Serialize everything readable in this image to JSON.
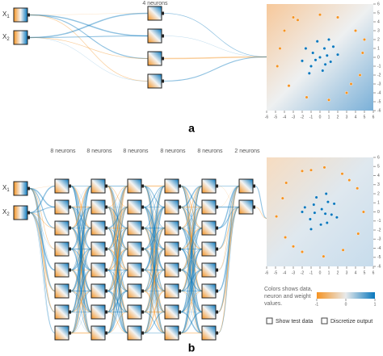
{
  "panel_a": {
    "label": "a",
    "inputs": [
      {
        "name": "X",
        "sub": "1"
      },
      {
        "name": "X",
        "sub": "2"
      }
    ],
    "layers": [
      "4 neurons"
    ],
    "plot": {
      "xlim": [
        -6,
        6
      ],
      "ylim": [
        -6,
        6
      ],
      "xticks": [
        -6,
        -5,
        -4,
        -3,
        -2,
        -1,
        0,
        1,
        2,
        3,
        4,
        5,
        6
      ],
      "yticks": [
        -6,
        -5,
        -4,
        -3,
        -2,
        -1,
        0,
        1,
        2,
        3,
        4,
        5,
        6
      ],
      "series": [
        {
          "color": "#f59322",
          "points": [
            [
              -4.5,
              1
            ],
            [
              -4,
              3
            ],
            [
              -2.5,
              4.2
            ],
            [
              0,
              4.8
            ],
            [
              2,
              4.5
            ],
            [
              4,
              3
            ],
            [
              4.8,
              0.5
            ],
            [
              4.5,
              -2
            ],
            [
              3,
              -4
            ],
            [
              1,
              -4.8
            ],
            [
              -1.5,
              -4.5
            ],
            [
              -3.5,
              -3.2
            ],
            [
              -4.8,
              -1
            ],
            [
              -3,
              4.5
            ],
            [
              3.5,
              -3
            ],
            [
              5,
              2
            ]
          ]
        },
        {
          "color": "#0877bd",
          "points": [
            [
              0,
              0
            ],
            [
              0.5,
              1
            ],
            [
              -0.8,
              0.5
            ],
            [
              1.2,
              -0.5
            ],
            [
              -1,
              -1
            ],
            [
              0.3,
              -1.5
            ],
            [
              1.5,
              1.2
            ],
            [
              -1.6,
              1
            ],
            [
              0.8,
              0.2
            ],
            [
              -0.3,
              1.8
            ],
            [
              2,
              0.3
            ],
            [
              -2,
              -0.4
            ],
            [
              0.6,
              -0.8
            ],
            [
              -0.5,
              -0.3
            ],
            [
              1,
              2
            ],
            [
              -1.2,
              -1.8
            ]
          ]
        }
      ]
    }
  },
  "panel_b": {
    "label": "b",
    "inputs": [
      {
        "name": "X",
        "sub": "1"
      },
      {
        "name": "X",
        "sub": "2"
      }
    ],
    "layers": [
      "8 neurons",
      "8 neurons",
      "8 neurons",
      "8 neurons",
      "8 neurons",
      "2 neurons"
    ],
    "plot": {
      "xlim": [
        -6,
        6
      ],
      "ylim": [
        -6,
        6
      ],
      "xticks": [
        -6,
        -5,
        -4,
        -3,
        -2,
        -1,
        0,
        1,
        2,
        3,
        4,
        5,
        6
      ],
      "yticks": [
        -6,
        -5,
        -4,
        -3,
        -2,
        -1,
        0,
        1,
        2,
        3,
        4,
        5,
        6
      ],
      "series": [
        {
          "color": "#f59322",
          "points": [
            [
              -4.2,
              1.5
            ],
            [
              -3.8,
              3.2
            ],
            [
              -2,
              4.5
            ],
            [
              0.5,
              4.9
            ],
            [
              2.5,
              4.2
            ],
            [
              4.2,
              2.6
            ],
            [
              4.9,
              0
            ],
            [
              4.3,
              -2.4
            ],
            [
              2.6,
              -4.2
            ],
            [
              0.4,
              -4.9
            ],
            [
              -2,
              -4.4
            ],
            [
              -3.9,
              -2.8
            ],
            [
              -4.9,
              -0.5
            ],
            [
              -1,
              4.6
            ],
            [
              3.3,
              3.5
            ],
            [
              -3,
              -3.8
            ]
          ]
        },
        {
          "color": "#0877bd",
          "points": [
            [
              0.2,
              0.3
            ],
            [
              0.9,
              1.1
            ],
            [
              -0.7,
              0.8
            ],
            [
              1.3,
              -0.3
            ],
            [
              -1.1,
              -0.8
            ],
            [
              0.1,
              -1.4
            ],
            [
              1.6,
              0.9
            ],
            [
              -1.7,
              0.5
            ],
            [
              0.6,
              -0.2
            ],
            [
              -0.4,
              1.6
            ],
            [
              1.9,
              -0.6
            ],
            [
              -2,
              0
            ],
            [
              0.8,
              -1.2
            ],
            [
              -0.6,
              -0.1
            ],
            [
              0.7,
              2
            ],
            [
              -1,
              -1.9
            ]
          ]
        }
      ]
    },
    "legend": {
      "text": "Colors shows data, neuron and weight values.",
      "ticks": [
        -1,
        0,
        1
      ],
      "colors": [
        "#f59322",
        "#e8eaeb",
        "#0877bd"
      ]
    },
    "checkboxes": [
      "Show test data",
      "Discretize output"
    ]
  }
}
